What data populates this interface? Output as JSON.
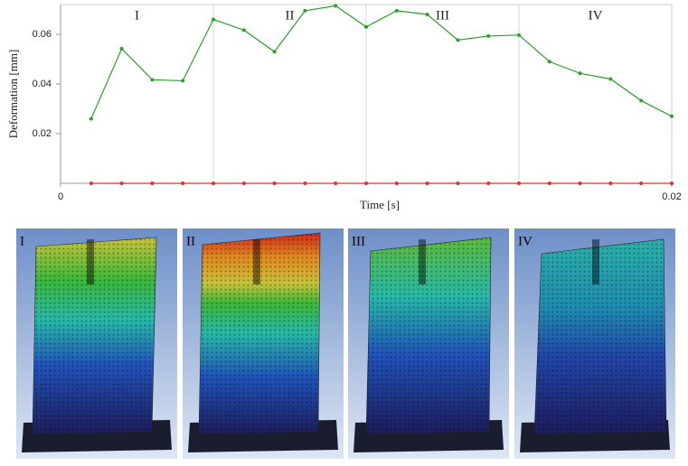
{
  "chart_data": {
    "type": "line",
    "xlabel": "Time [s]",
    "ylabel": "Deformation [mm]",
    "x": [
      0.001,
      0.002,
      0.003,
      0.004,
      0.005,
      0.006,
      0.007,
      0.008,
      0.009,
      0.01,
      0.011,
      0.012,
      0.013,
      0.014,
      0.015,
      0.016,
      0.017,
      0.018,
      0.019,
      0.02
    ],
    "series": [
      {
        "color": "#2ca02c",
        "values": [
          0.026,
          0.0542,
          0.0417,
          0.0413,
          0.066,
          0.0617,
          0.053,
          0.0695,
          0.0715,
          0.063,
          0.0695,
          0.068,
          0.0577,
          0.0593,
          0.0597,
          0.049,
          0.0443,
          0.042,
          0.0333,
          0.027
        ]
      },
      {
        "color": "#e0302a",
        "values": [
          0,
          0,
          0,
          0,
          0,
          0,
          0,
          0,
          0,
          0,
          0,
          0,
          0,
          0,
          0,
          0,
          0,
          0,
          0,
          0
        ]
      }
    ],
    "xlim": [
      0,
      0.02
    ],
    "xticks": [
      0,
      0.02
    ],
    "ylim": [
      0,
      0.072
    ],
    "yticks": [
      0.02,
      0.04,
      0.06
    ],
    "region_lines": [
      0.005,
      0.01,
      0.015
    ],
    "region_labels": [
      "I",
      "II",
      "III",
      "IV"
    ]
  },
  "panels": {
    "labels": [
      "I",
      "II",
      "III",
      "IV"
    ]
  }
}
